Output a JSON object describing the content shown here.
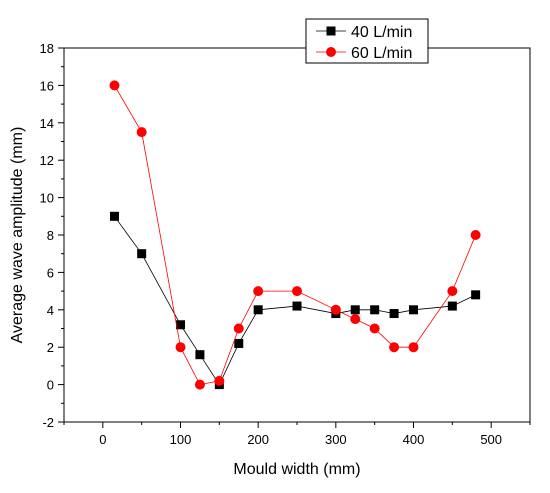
{
  "chart_data": {
    "type": "line",
    "title": "",
    "xlabel": "Mould width (mm)",
    "ylabel": "Average wave amplitude (mm)",
    "xlim": [
      -50,
      550
    ],
    "ylim": [
      -2,
      18
    ],
    "xticks": [
      0,
      100,
      200,
      300,
      400,
      500
    ],
    "yticks": [
      -2,
      0,
      2,
      4,
      6,
      8,
      10,
      12,
      14,
      16,
      18
    ],
    "grid": false,
    "legend_position": "top-right",
    "series": [
      {
        "name": "40 L/min",
        "color": "#000000",
        "marker": "square",
        "x": [
          15,
          50,
          100,
          125,
          150,
          175,
          200,
          250,
          300,
          325,
          350,
          375,
          400,
          450,
          480
        ],
        "y": [
          9,
          7,
          3.2,
          1.6,
          0,
          2.2,
          4,
          4.2,
          3.8,
          4,
          4,
          3.8,
          4,
          4.2,
          4.8
        ]
      },
      {
        "name": "60 L/min",
        "color": "#ff0000",
        "marker": "circle",
        "x": [
          15,
          50,
          100,
          125,
          150,
          175,
          200,
          250,
          300,
          325,
          350,
          375,
          400,
          450,
          480
        ],
        "y": [
          16,
          13.5,
          2,
          0,
          0.2,
          3,
          5,
          5,
          4,
          3.5,
          3,
          2,
          2,
          5,
          8
        ]
      }
    ]
  }
}
